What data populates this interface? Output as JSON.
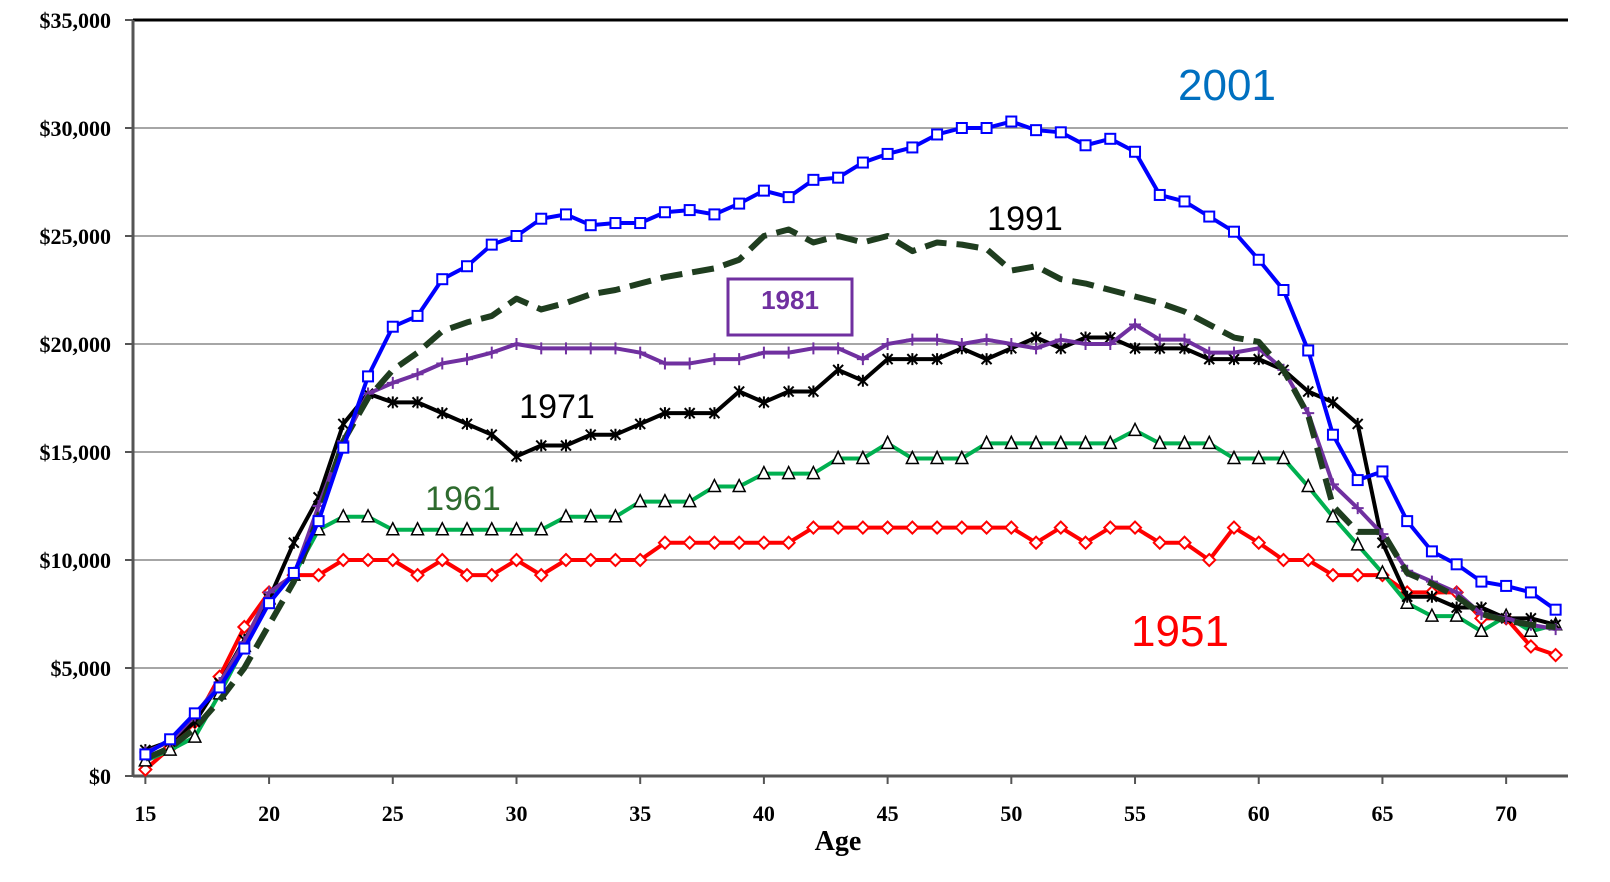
{
  "chart_data": {
    "type": "line",
    "x_label": "Age",
    "x": [
      15,
      16,
      17,
      18,
      19,
      20,
      21,
      22,
      23,
      24,
      25,
      26,
      27,
      28,
      29,
      30,
      31,
      32,
      33,
      34,
      35,
      36,
      37,
      38,
      39,
      40,
      41,
      42,
      43,
      44,
      45,
      46,
      47,
      48,
      49,
      50,
      51,
      52,
      53,
      54,
      55,
      56,
      57,
      58,
      59,
      60,
      61,
      62,
      63,
      64,
      65,
      66,
      67,
      68,
      69,
      70,
      71,
      72
    ],
    "xlim": [
      14.5,
      72.5
    ],
    "xticks": [
      15,
      20,
      25,
      30,
      35,
      40,
      45,
      50,
      55,
      60,
      65,
      70
    ],
    "ylim": [
      0,
      35000
    ],
    "yticks": [
      {
        "value": 0,
        "label": "$0"
      },
      {
        "value": 5000,
        "label": "$5,000"
      },
      {
        "value": 10000,
        "label": "$10,000"
      },
      {
        "value": 15000,
        "label": "$15,000"
      },
      {
        "value": 20000,
        "label": "$20,000"
      },
      {
        "value": 25000,
        "label": "$25,000"
      },
      {
        "value": 30000,
        "label": "$30,000"
      },
      {
        "value": 35000,
        "label": "$35,000"
      }
    ],
    "grid": true,
    "series": [
      {
        "name": "2001",
        "color": "#0000ff",
        "label_color": "#0070c0",
        "marker": "square",
        "values": [
          1000,
          1700,
          2900,
          4100,
          5900,
          8000,
          9400,
          11800,
          15200,
          18500,
          20800,
          21300,
          23000,
          23600,
          24600,
          25000,
          25800,
          26000,
          25500,
          25600,
          25600,
          26100,
          26200,
          26000,
          26500,
          27100,
          26800,
          27600,
          27700,
          28400,
          28800,
          29100,
          29700,
          30000,
          30000,
          30300,
          29900,
          29800,
          29200,
          29500,
          28900,
          26900,
          26600,
          25900,
          25200,
          23900,
          22500,
          19700,
          15800,
          13700,
          14100,
          11800,
          10400,
          9800,
          9000,
          8800,
          8500,
          7700
        ]
      },
      {
        "name": "1991",
        "color": "#1f3d1f",
        "label_color": "#000000",
        "marker": "none",
        "dashed": true,
        "values": [
          800,
          1300,
          2200,
          3500,
          5000,
          7000,
          9000,
          12000,
          15500,
          17500,
          18800,
          19600,
          20600,
          21000,
          21300,
          22100,
          21600,
          21900,
          22300,
          22500,
          22800,
          23100,
          23300,
          23500,
          23900,
          25000,
          25300,
          24700,
          25000,
          24700,
          25000,
          24300,
          24700,
          24600,
          24400,
          23400,
          23600,
          23000,
          22800,
          22500,
          22200,
          21900,
          21500,
          20900,
          20300,
          20100,
          18800,
          16700,
          12500,
          11300,
          11300,
          9400,
          8900,
          8300,
          7500,
          7200,
          7000,
          6900
        ]
      },
      {
        "name": "1981",
        "color": "#7030a0",
        "label_color": "#7030a0",
        "marker": "plus",
        "boxed": true,
        "values": [
          1100,
          1600,
          2800,
          4300,
          6200,
          8500,
          9300,
          12500,
          15500,
          17700,
          18200,
          18600,
          19100,
          19300,
          19600,
          20000,
          19800,
          19800,
          19800,
          19800,
          19600,
          19100,
          19100,
          19300,
          19300,
          19600,
          19600,
          19800,
          19800,
          19300,
          20000,
          20200,
          20200,
          20000,
          20200,
          20000,
          19800,
          20200,
          20000,
          20000,
          20900,
          20200,
          20200,
          19600,
          19600,
          19800,
          18800,
          16800,
          13500,
          12400,
          11200,
          9500,
          9000,
          8500,
          7500,
          7300,
          7000,
          6800
        ]
      },
      {
        "name": "1971",
        "color": "#000000",
        "label_color": "#000000",
        "marker": "asterisk",
        "values": [
          1200,
          1600,
          2500,
          4300,
          6300,
          8200,
          10800,
          12900,
          16300,
          17700,
          17300,
          17300,
          16800,
          16300,
          15800,
          14800,
          15300,
          15300,
          15800,
          15800,
          16300,
          16800,
          16800,
          16800,
          17800,
          17300,
          17800,
          17800,
          18800,
          18300,
          19300,
          19300,
          19300,
          19800,
          19300,
          19800,
          20300,
          19800,
          20300,
          20300,
          19800,
          19800,
          19800,
          19300,
          19300,
          19300,
          18800,
          17800,
          17300,
          16300,
          10800,
          8300,
          8300,
          7800,
          7800,
          7300,
          7300,
          7000
        ]
      },
      {
        "name": "1961",
        "color": "#00b050",
        "label_color": "#2e6b2e",
        "marker": "triangle",
        "values": [
          700,
          1200,
          1800,
          3800,
          6000,
          8200,
          9300,
          11400,
          12000,
          12000,
          11400,
          11400,
          11400,
          11400,
          11400,
          11400,
          11400,
          12000,
          12000,
          12000,
          12700,
          12700,
          12700,
          13400,
          13400,
          14000,
          14000,
          14000,
          14700,
          14700,
          15400,
          14700,
          14700,
          14700,
          15400,
          15400,
          15400,
          15400,
          15400,
          15400,
          16000,
          15400,
          15400,
          15400,
          14700,
          14700,
          14700,
          13400,
          12000,
          10700,
          9400,
          8000,
          7400,
          7400,
          6700,
          7400,
          6700,
          7000
        ]
      },
      {
        "name": "1951",
        "color": "#ff0000",
        "label_color": "#ff0000",
        "marker": "diamond",
        "values": [
          300,
          1300,
          2500,
          4600,
          6900,
          8500,
          9300,
          9300,
          10000,
          10000,
          10000,
          9300,
          10000,
          9300,
          9300,
          10000,
          9300,
          10000,
          10000,
          10000,
          10000,
          10800,
          10800,
          10800,
          10800,
          10800,
          10800,
          11500,
          11500,
          11500,
          11500,
          11500,
          11500,
          11500,
          11500,
          11500,
          10800,
          11500,
          10800,
          11500,
          11500,
          10800,
          10800,
          10000,
          11500,
          10800,
          10000,
          10000,
          9300,
          9300,
          9300,
          8500,
          8500,
          8500,
          7300,
          7300,
          6000,
          5600
        ]
      }
    ]
  }
}
